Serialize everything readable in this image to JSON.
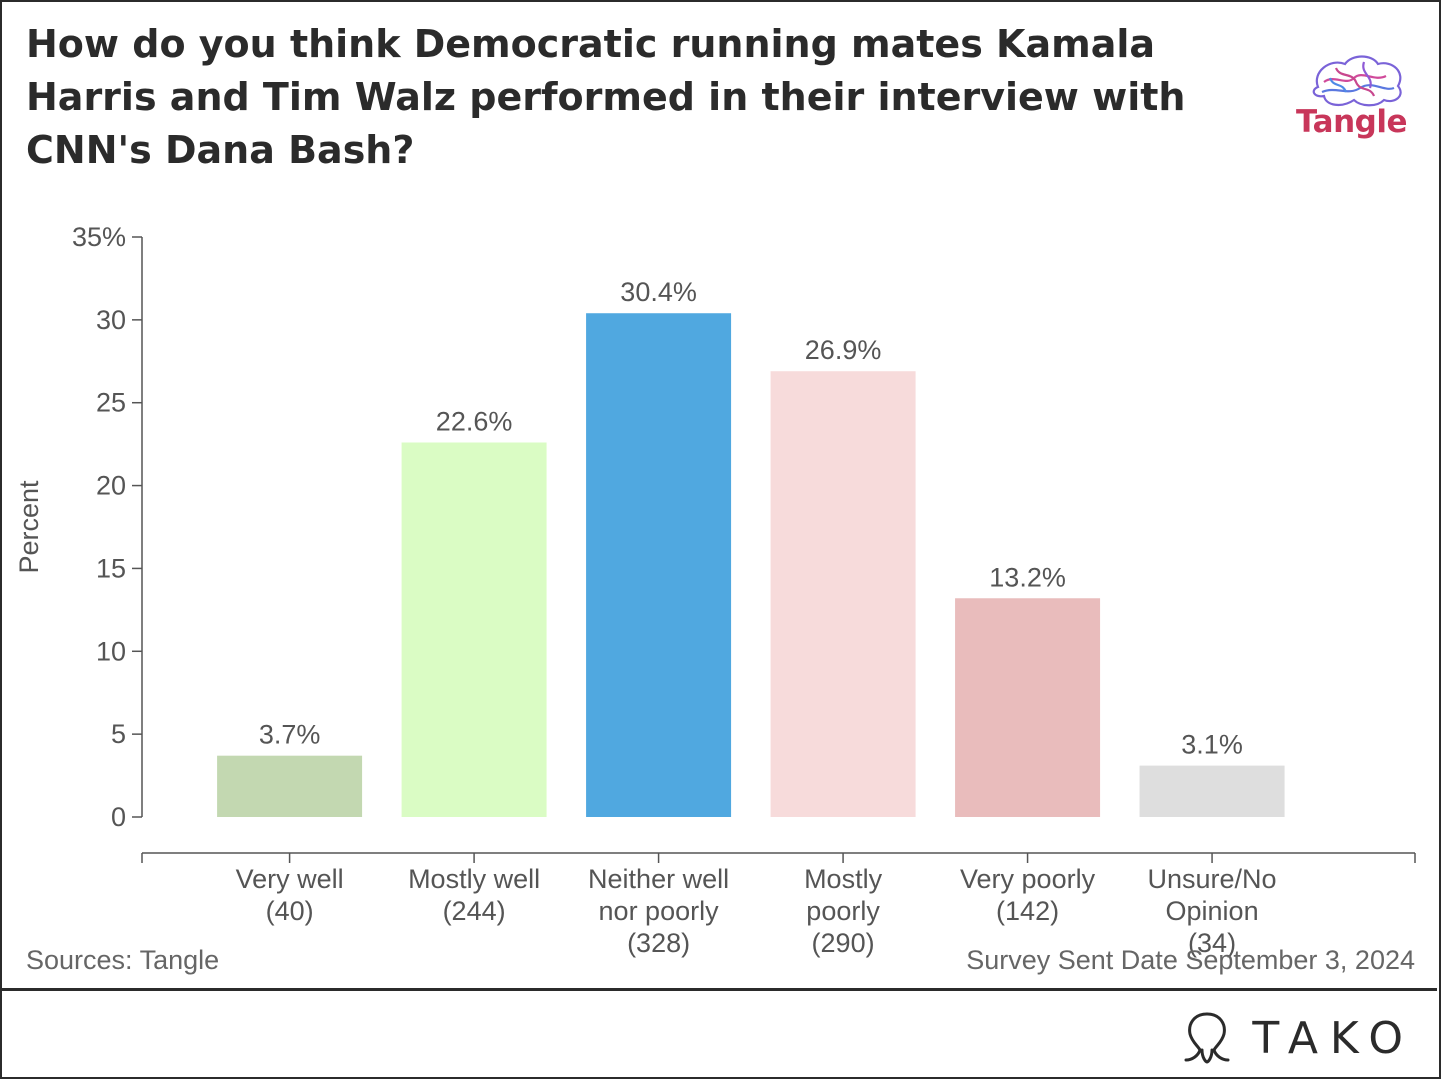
{
  "title": "How do you think Democratic running mates Kamala Harris and Tim Walz performed in their interview with CNN's Dana Bash?",
  "logo_text": "Tangle",
  "source": "Sources: Tangle",
  "survey_note": "Survey Sent Date September 3, 2024",
  "brand": "TAKO",
  "chart_data": {
    "type": "bar",
    "ylabel": "Percent",
    "ylim": [
      0,
      35
    ],
    "yticks": [
      {
        "value": 0,
        "label": "0"
      },
      {
        "value": 5,
        "label": "5"
      },
      {
        "value": 10,
        "label": "10"
      },
      {
        "value": 15,
        "label": "15"
      },
      {
        "value": 20,
        "label": "20"
      },
      {
        "value": 25,
        "label": "25"
      },
      {
        "value": 30,
        "label": "30"
      },
      {
        "value": 35,
        "label": "35%"
      }
    ],
    "categories": [
      [
        "Very well",
        "(40)"
      ],
      [
        "Mostly well",
        "(244)"
      ],
      [
        "Neither well",
        "nor poorly",
        "(328)"
      ],
      [
        "Mostly",
        "poorly",
        "(290)"
      ],
      [
        "Very poorly",
        "(142)"
      ],
      [
        "Unsure/No",
        "Opinion",
        "(34)"
      ]
    ],
    "values": [
      3.7,
      22.6,
      30.4,
      26.9,
      13.2,
      3.1
    ],
    "value_labels": [
      "3.7%",
      "22.6%",
      "30.4%",
      "26.9%",
      "13.2%",
      "3.1%"
    ],
    "colors": [
      "#c3d8b1",
      "#dafcc4",
      "#50a8e0",
      "#f7dbdb",
      "#e9bcbc",
      "#dedede"
    ],
    "grid": false
  }
}
